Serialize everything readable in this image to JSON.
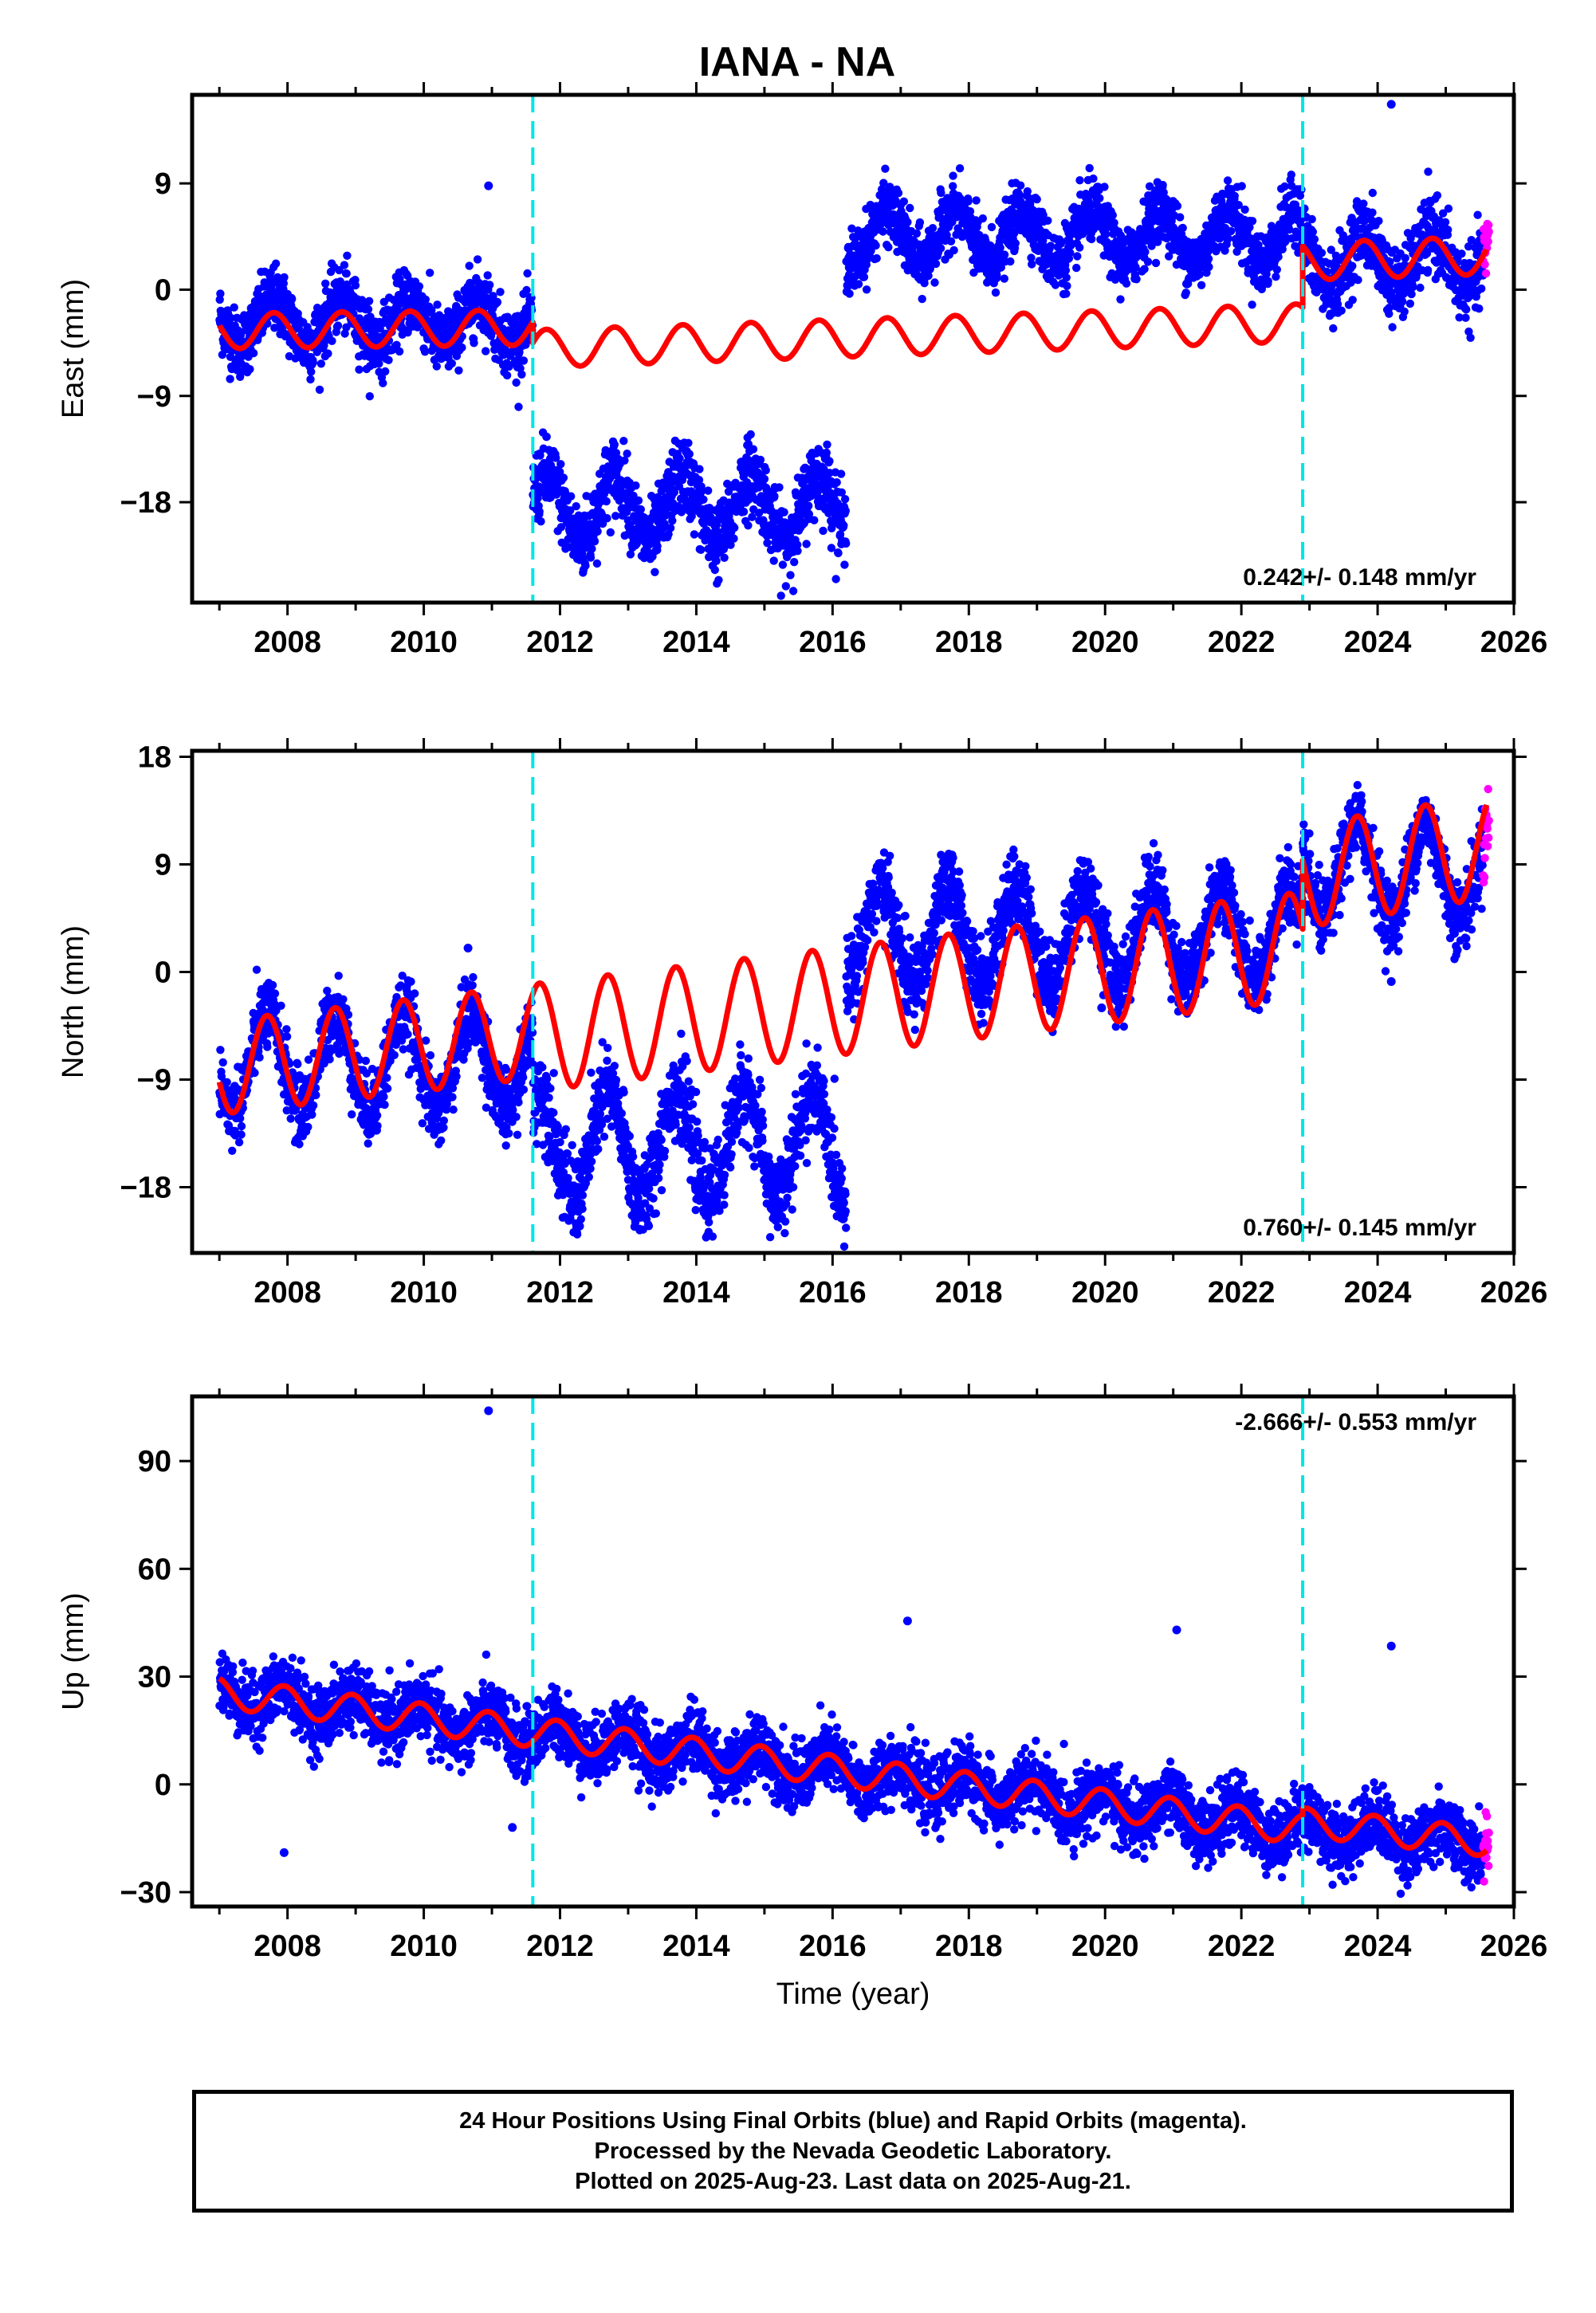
{
  "title": "IANA - NA",
  "xlabel": "Time (year)",
  "footer": {
    "line1": "24 Hour Positions Using Final Orbits (blue) and Rapid Orbits (magenta).",
    "line2": "Processed by the Nevada Geodetic Laboratory.",
    "line3": "Plotted on 2025-Aug-23. Last data on 2025-Aug-21."
  },
  "colors": {
    "final": "#0000ff",
    "rapid": "#ff00ff",
    "model": "#ff0000",
    "steps": "#00e5e5"
  },
  "chart_data": [
    {
      "type": "scatter",
      "ylabel": "East (mm)",
      "rate": "0.242+/- 0.148 mm/yr",
      "xlim": [
        2006.6,
        2026.0
      ],
      "ylim": [
        -26.5,
        16.5
      ],
      "yticks": [
        -18,
        -9,
        0,
        9
      ],
      "xticks": [
        2008,
        2010,
        2012,
        2014,
        2016,
        2018,
        2020,
        2022,
        2024,
        2026
      ],
      "steps": [
        2011.6,
        2022.9
      ],
      "final_end": 2025.55,
      "rapid_end": 2025.64,
      "series": [
        {
          "segment": "2007-2011.6",
          "x_start": 2007.0,
          "x_end": 2011.6,
          "level": -2.7,
          "amplitude": 1.9,
          "phase": 0.55,
          "noise": 1.4
        },
        {
          "segment": "2011.6-2016.2",
          "x_start": 2011.6,
          "x_end": 2016.2,
          "level": -18.5,
          "amplitude": 2.8,
          "phase": 0.55,
          "noise": 1.6
        },
        {
          "segment": "2016.2-2022.9",
          "x_start": 2016.2,
          "x_end": 2022.9,
          "level": 4.5,
          "amplitude": 2.2,
          "phase": 0.55,
          "noise": 1.3
        },
        {
          "segment": "2022.9-2025.6",
          "x_start": 2022.9,
          "x_end": 2025.6,
          "level": 2.5,
          "amplitude": 2.3,
          "phase": 0.55,
          "noise": 1.5
        }
      ],
      "model_segments": [
        {
          "x_start": 2007.0,
          "x_end": 2011.6,
          "y_start": -3.5,
          "y_end": -3.2,
          "amplitude": 1.5,
          "phase": 0.55
        },
        {
          "x_start": 2011.6,
          "x_end": 2022.9,
          "y_start": -5.0,
          "y_end": -2.8,
          "amplitude": 1.6,
          "phase": 0.55
        },
        {
          "x_start": 2022.9,
          "x_end": 2025.6,
          "y_start": 2.4,
          "y_end": 2.9,
          "amplitude": 1.6,
          "phase": 0.55
        }
      ],
      "outliers": [
        [
          2010.95,
          8.8
        ],
        [
          2024.2,
          15.7
        ]
      ]
    },
    {
      "type": "scatter",
      "ylabel": "North (mm)",
      "rate": "0.760+/- 0.145 mm/yr",
      "xlim": [
        2006.6,
        2026.0
      ],
      "ylim": [
        -23.5,
        18.5
      ],
      "yticks": [
        -18,
        -9,
        0,
        9,
        18
      ],
      "xticks": [
        2008,
        2010,
        2012,
        2014,
        2016,
        2018,
        2020,
        2022,
        2024,
        2026
      ],
      "steps": [
        2011.6,
        2022.9
      ],
      "final_end": 2025.55,
      "rapid_end": 2025.64,
      "series": [
        {
          "segment": "2007-2011.6",
          "x_start": 2007.0,
          "x_end": 2011.6,
          "level": -7.5,
          "amplitude": 4.0,
          "phase": 0.45,
          "noise": 1.5
        },
        {
          "segment": "2011.6-2016.2",
          "x_start": 2011.6,
          "x_end": 2016.2,
          "level": -14.5,
          "amplitude": 4.5,
          "phase": 0.45,
          "noise": 1.8
        },
        {
          "segment": "2016.2-2022.9",
          "x_start": 2016.2,
          "x_end": 2022.9,
          "level": 3.0,
          "amplitude": 4.0,
          "phase": 0.45,
          "noise": 1.6
        },
        {
          "segment": "2022.9-2025.6",
          "x_start": 2022.9,
          "x_end": 2025.6,
          "level": 8.5,
          "amplitude": 4.0,
          "phase": 0.45,
          "noise": 1.5
        }
      ],
      "model_segments": [
        {
          "x_start": 2007.0,
          "x_end": 2011.6,
          "y_start": -8.0,
          "y_end": -5.0,
          "amplitude": 3.9,
          "phase": 0.45
        },
        {
          "x_start": 2011.6,
          "x_end": 2022.9,
          "y_start": -5.5,
          "y_end": 2.2,
          "amplitude": 4.5,
          "phase": 0.45
        },
        {
          "x_start": 2022.9,
          "x_end": 2025.6,
          "y_start": 8.0,
          "y_end": 10.5,
          "amplitude": 4.3,
          "phase": 0.45
        }
      ],
      "outliers": [
        [
          2010.65,
          2.0
        ],
        [
          2024.2,
          -0.8
        ],
        [
          2019.95,
          -3.0
        ]
      ]
    },
    {
      "type": "scatter",
      "ylabel": "Up (mm)",
      "rate": "-2.666+/- 0.553 mm/yr",
      "xlim": [
        2006.6,
        2026.0
      ],
      "ylim": [
        -34,
        108
      ],
      "yticks": [
        -30,
        0,
        30,
        60,
        90
      ],
      "xticks": [
        2008,
        2010,
        2012,
        2014,
        2016,
        2018,
        2020,
        2022,
        2024,
        2026
      ],
      "steps": [
        2011.6,
        2022.9
      ],
      "final_end": 2025.55,
      "rapid_end": 2025.64,
      "series": [
        {
          "segment": "2007-2022.9",
          "x_start": 2007.0,
          "x_end": 2022.9,
          "level": 25.5,
          "trend": -2.4,
          "amplitude": 4.0,
          "phase": 0.7,
          "noise": 4.5
        },
        {
          "segment": "2022.9-2025.6",
          "x_start": 2022.9,
          "x_end": 2025.6,
          "level": -12.0,
          "trend": -1.5,
          "amplitude": 4.0,
          "phase": 0.7,
          "noise": 4.5
        }
      ],
      "model_segments": [
        {
          "x_start": 2007.0,
          "x_end": 2022.9,
          "y_start": 25.5,
          "y_end": -12.5,
          "amplitude": 4.2,
          "phase": 0.7
        },
        {
          "x_start": 2022.9,
          "x_end": 2025.6,
          "y_start": -10.5,
          "y_end": -16.0,
          "amplitude": 4.0,
          "phase": 0.7
        }
      ],
      "outliers": [
        [
          2010.95,
          104.0
        ],
        [
          2007.95,
          -19.0
        ],
        [
          2017.1,
          45.5
        ],
        [
          2021.05,
          43.0
        ],
        [
          2024.2,
          38.5
        ],
        [
          2011.3,
          -12.0
        ]
      ]
    }
  ]
}
